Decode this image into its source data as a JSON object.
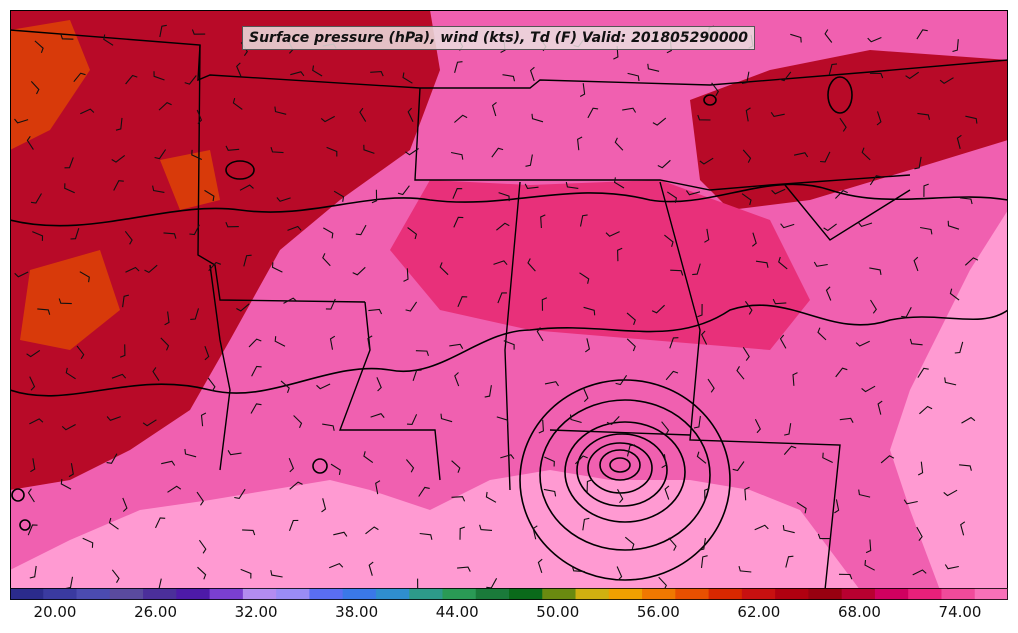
{
  "title": "Surface pressure (hPa), wind (kts), Td (F) Valid: 201805290000",
  "colorbar": {
    "tick_labels": [
      "20.00",
      "26.00",
      "32.00",
      "38.00",
      "44.00",
      "50.00",
      "56.00",
      "62.00",
      "68.00",
      "74.00"
    ],
    "colors": [
      "#2b2b8c",
      "#3a3aa0",
      "#4b4bb0",
      "#5a4a9e",
      "#4b2f9a",
      "#4d1aa8",
      "#7a3fd0",
      "#b38cf0",
      "#9a8cf5",
      "#5a6ef2",
      "#3a78e8",
      "#2f8ecf",
      "#2d9a8a",
      "#2a9a55",
      "#1a7a3a",
      "#0a6a1a",
      "#6a8a10",
      "#d0b010",
      "#f0a000",
      "#f07800",
      "#e85000",
      "#d82800",
      "#c81010",
      "#b00010",
      "#980010",
      "#b80030",
      "#d00060",
      "#e8207a",
      "#f04a9a",
      "#f870b8"
    ]
  },
  "colors": {
    "ocean": "#ff9ad2",
    "land_base": "#f060b0",
    "moist": "#e8307a",
    "dry": "#b80a28",
    "very_dry": "#d83a0a",
    "boundary": "#000000"
  }
}
